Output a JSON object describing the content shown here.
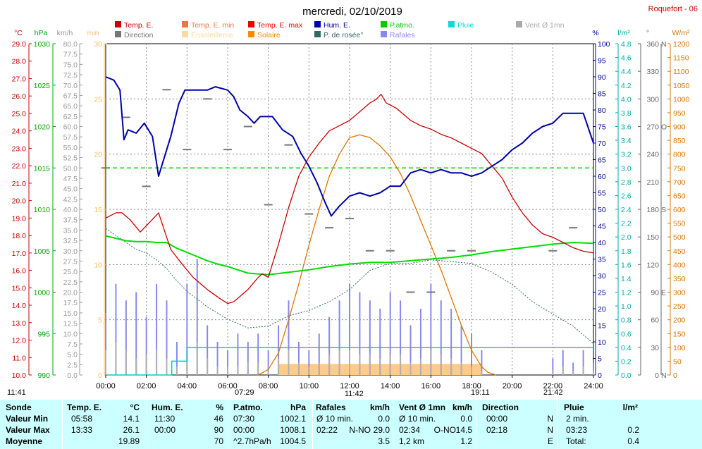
{
  "title": "mercredi, 02/10/2019",
  "station": "Roquefort - 06",
  "colors": {
    "temp": "#cc0000",
    "humidity": "#0000aa",
    "pressure": "#00dd00",
    "dewpoint": "#336666",
    "solar": "#dd7700",
    "sunshine": "#ffcc88",
    "rain": "#00cccc",
    "gust": "#8888ee",
    "wind": "#b0b0b0",
    "direction": "#777777"
  },
  "legend": [
    {
      "label": "Temp. E.",
      "color": "#cc0000"
    },
    {
      "label": "Temp. E. min",
      "color": "#ee7744"
    },
    {
      "label": "Temp. E. max",
      "color": "#ee0000"
    },
    {
      "label": "Hum. E.",
      "color": "#0000aa"
    },
    {
      "label": "P.atmo.",
      "color": "#00cc00"
    },
    {
      "label": "Pluie",
      "color": "#00dddd"
    },
    {
      "label": "Vent Ø 1mn",
      "color": "#aaaaaa"
    },
    {
      "label": "Direction",
      "color": "#777777"
    },
    {
      "label": "Ensoleilleme",
      "color": "#ffd9a0"
    },
    {
      "label": "Solaire",
      "color": "#ff8800"
    },
    {
      "label": "P. de rosée°",
      "color": "#336666"
    },
    {
      "label": "Rafales",
      "color": "#8888ee"
    }
  ],
  "axis_units": {
    "temp": "°C",
    "pressure": "hPa",
    "wind": "km/h",
    "sunshine": "min",
    "humidity": "%",
    "rain": "l/m²",
    "direction": "°",
    "solar": "W/m²"
  },
  "axis_ticks": {
    "temp": [
      "29.0",
      "28.0",
      "27.0",
      "26.0",
      "25.0",
      "24.0",
      "23.0",
      "22.0",
      "21.0",
      "20.0",
      "19.0",
      "18.0",
      "17.0",
      "16.0",
      "15.0",
      "14.0",
      "13.0",
      "12.0",
      "11.0",
      "10.0"
    ],
    "pressure": [
      "1030",
      "1025",
      "1020",
      "1015",
      "1010",
      "1005",
      "1000",
      "995",
      "990"
    ],
    "wind": [
      "80.0",
      "77.5",
      "75.0",
      "72.5",
      "70.0",
      "67.5",
      "65.0",
      "62.5",
      "60.0",
      "57.5",
      "55.0",
      "52.5",
      "50.0",
      "47.5",
      "45.0",
      "42.5",
      "40.0",
      "37.5",
      "35.0",
      "32.5",
      "30.0",
      "27.5",
      "25.0",
      "22.5",
      "20.0",
      "17.5",
      "15.0",
      "12.5",
      "10.0",
      "7.5",
      "5.0",
      "2.5",
      "0.0"
    ],
    "sunshine": [
      "30",
      "25",
      "20",
      "15",
      "10",
      "5",
      "0"
    ],
    "humidity": [
      "100",
      "95",
      "90",
      "85",
      "80",
      "75",
      "70",
      "65",
      "60",
      "55",
      "50",
      "45",
      "40",
      "35",
      "30",
      "25",
      "20",
      "15",
      "10",
      "5",
      "0"
    ],
    "rain": [
      "4.8",
      "4.6",
      "4.4",
      "4.2",
      "4.0",
      "3.8",
      "3.6",
      "3.4",
      "3.2",
      "3.0",
      "2.8",
      "2.6",
      "2.4",
      "2.2",
      "2.0",
      "1.8",
      "1.6",
      "1.4",
      "1.2",
      "1.0",
      "0.8",
      "0.6",
      "0.4",
      "0.2",
      "0.0"
    ],
    "direction_deg": [
      "360",
      "330",
      "300",
      "270",
      "240",
      "210",
      "180",
      "150",
      "120",
      "90",
      "60",
      "30",
      "0"
    ],
    "direction_card": [
      "N",
      "",
      "",
      "O",
      "",
      "",
      "S",
      "",
      "",
      "E",
      "",
      "",
      "N"
    ],
    "solar": [
      "1200",
      "1150",
      "1100",
      "1050",
      "1000",
      "950",
      "900",
      "850",
      "800",
      "750",
      "700",
      "650",
      "600",
      "550",
      "500",
      "450",
      "400",
      "350",
      "300",
      "250",
      "200",
      "150",
      "100",
      "50",
      "0"
    ],
    "time": [
      "00:00",
      "02:00",
      "04:00",
      "06:00",
      "08:00",
      "10:00",
      "12:00",
      "14:00",
      "16:00",
      "18:00",
      "20:00",
      "22:00",
      "24:00"
    ]
  },
  "sun_labels": [
    "11:41",
    "07:29",
    "11:42",
    "19:11",
    "21:42"
  ],
  "chart_data": {
    "type": "line",
    "x_unit": "hours",
    "xlim": [
      0,
      24
    ],
    "series": [
      {
        "name": "Temp. E.",
        "axis": "°C",
        "ylim": [
          10,
          29
        ],
        "x": [
          0,
          0.5,
          0.8,
          1.2,
          1.7,
          2.2,
          2.6,
          2.8,
          3.2,
          3.8,
          4.3,
          5,
          5.6,
          6,
          6.3,
          6.6,
          7,
          7.5,
          7.7,
          8,
          8.5,
          9,
          9.5,
          10,
          10.5,
          11,
          11.5,
          12,
          12.5,
          13,
          13.3,
          13.55,
          13.8,
          14.3,
          15,
          15.5,
          16,
          16.5,
          17,
          17.5,
          18,
          18.5,
          19,
          19.5,
          20,
          20.5,
          21,
          21.5,
          22,
          22.5,
          23,
          23.5,
          24
        ],
        "y": [
          19.0,
          19.3,
          19.3,
          18.9,
          18.2,
          18.8,
          19.3,
          18.6,
          17.2,
          16.3,
          15.6,
          14.9,
          14.4,
          14.1,
          14.2,
          14.5,
          14.9,
          15.6,
          15.8,
          15.6,
          17.5,
          19.6,
          21.4,
          22.5,
          23.3,
          24.0,
          24.3,
          24.6,
          25.1,
          25.6,
          25.8,
          26.1,
          25.6,
          25.3,
          24.6,
          24.3,
          24.1,
          23.8,
          23.6,
          23.3,
          23.0,
          22.7,
          22.0,
          21.3,
          20.2,
          19.3,
          18.6,
          18.1,
          17.9,
          17.6,
          17.3,
          17.1,
          17.0
        ]
      },
      {
        "name": "Hum. E.",
        "axis": "%",
        "ylim": [
          0,
          100
        ],
        "x": [
          0,
          0.4,
          0.7,
          0.9,
          1.1,
          1.5,
          1.9,
          2.3,
          2.6,
          2.8,
          3.2,
          3.6,
          3.9,
          4.5,
          5,
          5.4,
          6,
          6.3,
          6.6,
          7,
          7.3,
          7.6,
          8.2,
          8.7,
          9.2,
          9.6,
          10,
          10.4,
          10.8,
          11.1,
          11.5,
          12,
          12.5,
          13,
          13.5,
          14,
          14.5,
          15,
          15.5,
          16,
          16.5,
          17,
          17.5,
          18,
          18.5,
          19,
          19.5,
          20,
          20.5,
          21,
          21.5,
          22,
          22.5,
          23,
          23.5,
          24
        ],
        "y": [
          90,
          89,
          86,
          71,
          74,
          73,
          76,
          72,
          60,
          64,
          72,
          82,
          86,
          86,
          86,
          87,
          86,
          84,
          80,
          78,
          76,
          78,
          78,
          74,
          72,
          67,
          63,
          58,
          52,
          48,
          51,
          54,
          55,
          54,
          55,
          57,
          57,
          61,
          62,
          61,
          62,
          61,
          61,
          60,
          61,
          63,
          65,
          68,
          70,
          73,
          75,
          76,
          79,
          79,
          79,
          70
        ]
      },
      {
        "name": "P.atmo.",
        "axis": "hPa",
        "ylim": [
          990,
          1030
        ],
        "x": [
          0,
          0.5,
          1,
          1.5,
          2,
          2.5,
          3,
          3.5,
          4,
          4.5,
          5,
          5.5,
          6,
          6.5,
          7,
          7.5,
          8,
          9,
          10,
          11,
          12,
          13,
          14,
          15,
          16,
          17,
          18,
          19,
          20,
          21,
          22,
          23,
          24
        ],
        "y": [
          1006.8,
          1006.5,
          1006.2,
          1006.1,
          1006.1,
          1006.0,
          1006.0,
          1005.3,
          1004.8,
          1004.3,
          1003.8,
          1003.4,
          1003.1,
          1002.7,
          1002.3,
          1002.2,
          1002.1,
          1002.4,
          1002.7,
          1003.1,
          1003.4,
          1003.6,
          1003.6,
          1003.8,
          1004.0,
          1004.2,
          1004.5,
          1004.9,
          1005.2,
          1005.5,
          1005.8,
          1006.0,
          1005.9
        ]
      },
      {
        "name": "P. de rosée°",
        "axis": "°C",
        "ylim": [
          10,
          29
        ],
        "x": [
          0,
          0.5,
          1,
          1.5,
          2,
          2.5,
          3,
          3.5,
          4,
          5,
          6,
          7,
          8,
          9,
          10,
          11,
          12,
          13,
          14,
          15,
          16,
          17,
          18,
          19,
          20,
          21,
          22,
          23,
          24
        ],
        "y": [
          18.4,
          18.0,
          17.6,
          17.2,
          17.0,
          16.6,
          16.1,
          15.4,
          14.8,
          13.9,
          13.2,
          12.7,
          12.8,
          13.4,
          13.7,
          14.2,
          14.9,
          16.0,
          16.4,
          16.4,
          16.6,
          16.5,
          16.4,
          15.9,
          15.2,
          14.2,
          13.5,
          12.8,
          11.8
        ]
      },
      {
        "name": "Solaire",
        "axis": "W/m²",
        "ylim": [
          0,
          1200
        ],
        "x": [
          7.5,
          8,
          8.5,
          9,
          9.5,
          10,
          10.5,
          11,
          11.5,
          12,
          12.5,
          13,
          13.5,
          14,
          14.5,
          15,
          15.5,
          16,
          16.5,
          17,
          17.5,
          18,
          18.5,
          18.8,
          19.2
        ],
        "y": [
          0,
          20,
          80,
          200,
          330,
          470,
          600,
          720,
          800,
          860,
          870,
          860,
          830,
          790,
          730,
          650,
          560,
          470,
          380,
          280,
          180,
          90,
          30,
          10,
          0
        ]
      },
      {
        "name": "Ensoleilleme",
        "axis": "min",
        "ylim": [
          0,
          30
        ],
        "x": [
          8.5,
          11.2,
          13.8,
          18.5
        ],
        "y": [
          1,
          1,
          1,
          1
        ]
      },
      {
        "name": "Pluie",
        "axis": "l/m²",
        "ylim": [
          0,
          4.8
        ],
        "x": [
          0,
          3.1,
          3.25,
          3.5,
          4.0,
          24
        ],
        "y": [
          0,
          0,
          0.2,
          0.2,
          0.4,
          0.4
        ]
      },
      {
        "name": "Rafales",
        "axis": "km/h",
        "ylim": [
          0,
          80
        ],
        "x": [
          0,
          0.5,
          1,
          1.5,
          2,
          2.5,
          3,
          3.5,
          4,
          4.5,
          5,
          5.5,
          6,
          6.5,
          7,
          7.5,
          8,
          8.5,
          9,
          9.5,
          10,
          10.5,
          11,
          11.5,
          12,
          12.5,
          13,
          13.5,
          14,
          14.5,
          15,
          15.5,
          16,
          16.5,
          17,
          17.5,
          18,
          18.5,
          19,
          19.5,
          20,
          20.5,
          21,
          21.5,
          22,
          22.5,
          23,
          23.5,
          24
        ],
        "y": [
          15,
          22,
          18,
          20,
          14,
          22,
          18,
          8,
          22,
          28,
          12,
          8,
          6,
          10,
          8,
          10,
          6,
          12,
          18,
          8,
          6,
          10,
          14,
          18,
          22,
          20,
          18,
          16,
          20,
          18,
          12,
          16,
          22,
          18,
          16,
          12,
          10,
          6,
          0,
          0,
          0,
          0,
          0,
          0,
          4,
          6,
          3,
          6,
          3
        ]
      },
      {
        "name": "Vent Ø 1mn",
        "axis": "km/h",
        "ylim": [
          0,
          80
        ],
        "x": [
          0,
          0.5,
          1,
          1.5,
          2,
          2.5,
          3,
          3.5,
          4,
          4.5,
          5,
          5.5,
          6,
          6.5,
          7,
          7.5,
          8,
          8.5,
          9,
          9.5,
          10,
          10.5,
          11,
          11.5,
          12,
          12.5,
          13,
          13.5,
          14,
          14.5,
          15,
          15.5,
          16,
          16.5,
          17,
          17.5,
          18,
          18.5,
          19,
          19.5,
          20,
          20.5,
          21,
          21.5,
          22,
          22.5,
          23,
          23.5,
          24
        ],
        "y": [
          6,
          8,
          6,
          4,
          5,
          6,
          4,
          2,
          6,
          8,
          4,
          2,
          2,
          2,
          3,
          3,
          2,
          4,
          6,
          3,
          2,
          3,
          5,
          6,
          6,
          5,
          5,
          4,
          5,
          5,
          3,
          4,
          6,
          5,
          4,
          3,
          2,
          1,
          0,
          0,
          0,
          0,
          0,
          0,
          1,
          2,
          1,
          2,
          1
        ]
      },
      {
        "name": "Direction",
        "axis": "°",
        "ylim": [
          0,
          360
        ],
        "x": [
          0,
          1,
          2,
          3,
          4,
          5,
          6,
          7,
          8,
          9,
          10,
          11,
          12,
          13,
          14,
          15,
          16,
          17,
          18,
          22,
          23
        ],
        "y": [
          225,
          280,
          205,
          310,
          245,
          300,
          245,
          270,
          185,
          250,
          175,
          160,
          170,
          135,
          135,
          90,
          90,
          135,
          135,
          135,
          160
        ]
      }
    ]
  },
  "summary": {
    "headers": [
      "Sonde",
      "Temp. E.",
      "°C",
      "Hum. E.",
      "%",
      "P.atmo.",
      "hPa",
      "Rafales",
      "km/h",
      "Vent Ø 1mn",
      "km/h",
      "Direction",
      "Pluie",
      "l/m²"
    ],
    "row_labels": [
      "Valeur Min",
      "Valeur Max",
      "Moyenne"
    ],
    "temp": [
      [
        "05:58",
        "14.1"
      ],
      [
        "13:33",
        "26.1"
      ],
      [
        "",
        "19.89"
      ]
    ],
    "hum": [
      [
        "11:30",
        "46"
      ],
      [
        "00:00",
        "90"
      ],
      [
        "",
        "70"
      ]
    ],
    "press": [
      [
        "07:30",
        "1002.1"
      ],
      [
        "00:00",
        "1008.1"
      ],
      [
        "^2.7hPa/h",
        "1004.5"
      ]
    ],
    "gust": [
      [
        "Ø 10 min.",
        "",
        "0.0"
      ],
      [
        "02:22",
        "N-NO",
        "29.0"
      ],
      [
        "",
        "",
        "3.5"
      ]
    ],
    "wind": [
      [
        "Ø 10 min.",
        "",
        "0.0"
      ],
      [
        "02:34",
        "O-NO",
        "14.5"
      ],
      [
        "1,2 km",
        "",
        "1.2"
      ]
    ],
    "dir": [
      [
        "00:00",
        "N"
      ],
      [
        "02:18",
        "N"
      ],
      [
        "",
        "E"
      ]
    ],
    "rain": [
      [
        "2 min.",
        ""
      ],
      [
        "03:23",
        "0.2"
      ],
      [
        "Total:",
        "0.4"
      ]
    ]
  }
}
